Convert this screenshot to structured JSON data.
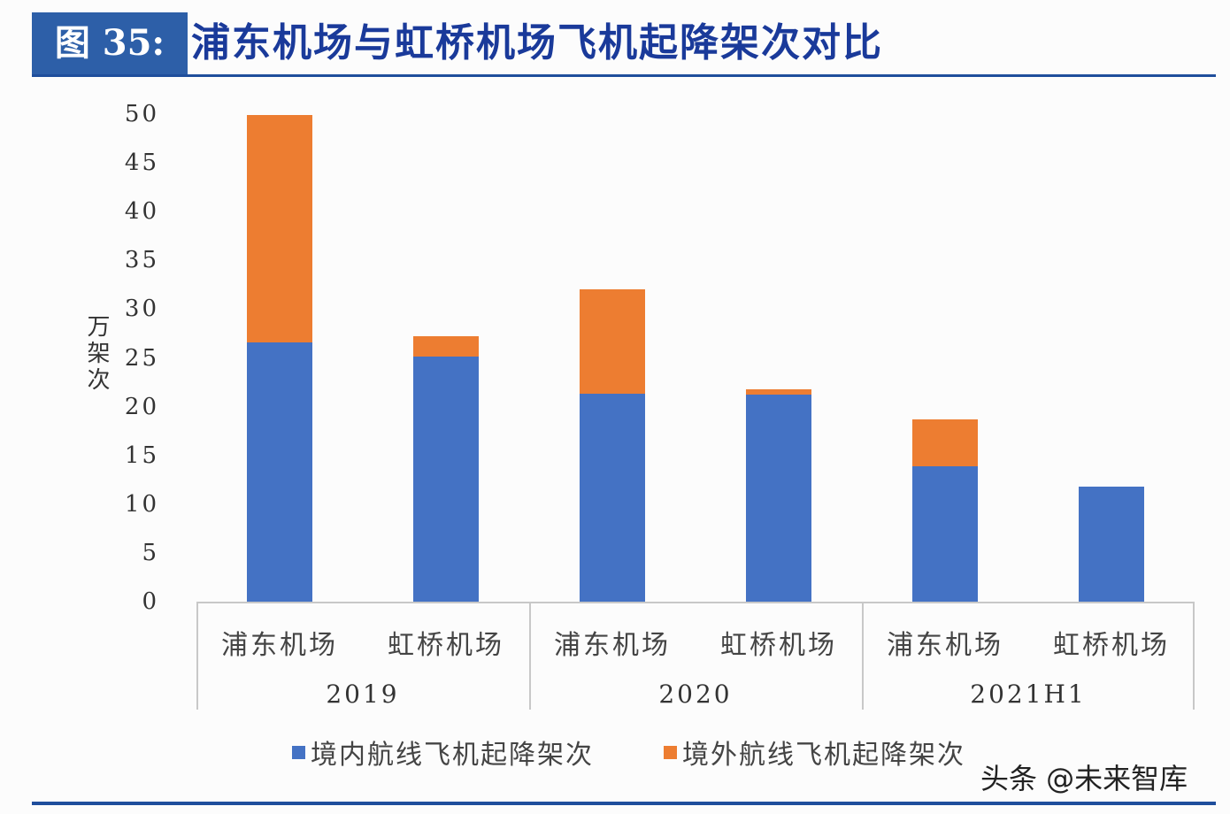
{
  "header": {
    "figure_number": "图 35:",
    "title": "浦东机场与虹桥机场飞机起降架次对比"
  },
  "colors": {
    "domestic": "#4472c4",
    "international": "#ed7d31",
    "title_bg": "#2d5fa8",
    "title_text": "#1a3a9a"
  },
  "watermark": "头条 @未来智库",
  "chart_data": {
    "type": "bar",
    "stacked": true,
    "title": "浦东机场与虹桥机场飞机起降架次对比",
    "xlabel": "",
    "ylabel": "万架次",
    "ylim": [
      0,
      50
    ],
    "yticks": [
      0,
      5,
      10,
      15,
      20,
      25,
      30,
      35,
      40,
      45,
      50
    ],
    "grid": false,
    "legend_position": "bottom",
    "groups": [
      "2019",
      "2020",
      "2021H1"
    ],
    "categories": [
      "浦东机场",
      "虹桥机场",
      "浦东机场",
      "虹桥机场",
      "浦东机场",
      "虹桥机场"
    ],
    "group_of_category": [
      "2019",
      "2019",
      "2020",
      "2020",
      "2021H1",
      "2021H1"
    ],
    "series": [
      {
        "name": "境内航线飞机起降架次",
        "color": "#4472c4",
        "values": [
          26.8,
          25.3,
          21.5,
          21.4,
          14.1,
          12.0
        ]
      },
      {
        "name": "境外航线飞机起降架次",
        "color": "#ed7d31",
        "values": [
          23.3,
          2.1,
          10.7,
          0.6,
          4.8,
          0.0
        ]
      }
    ]
  }
}
